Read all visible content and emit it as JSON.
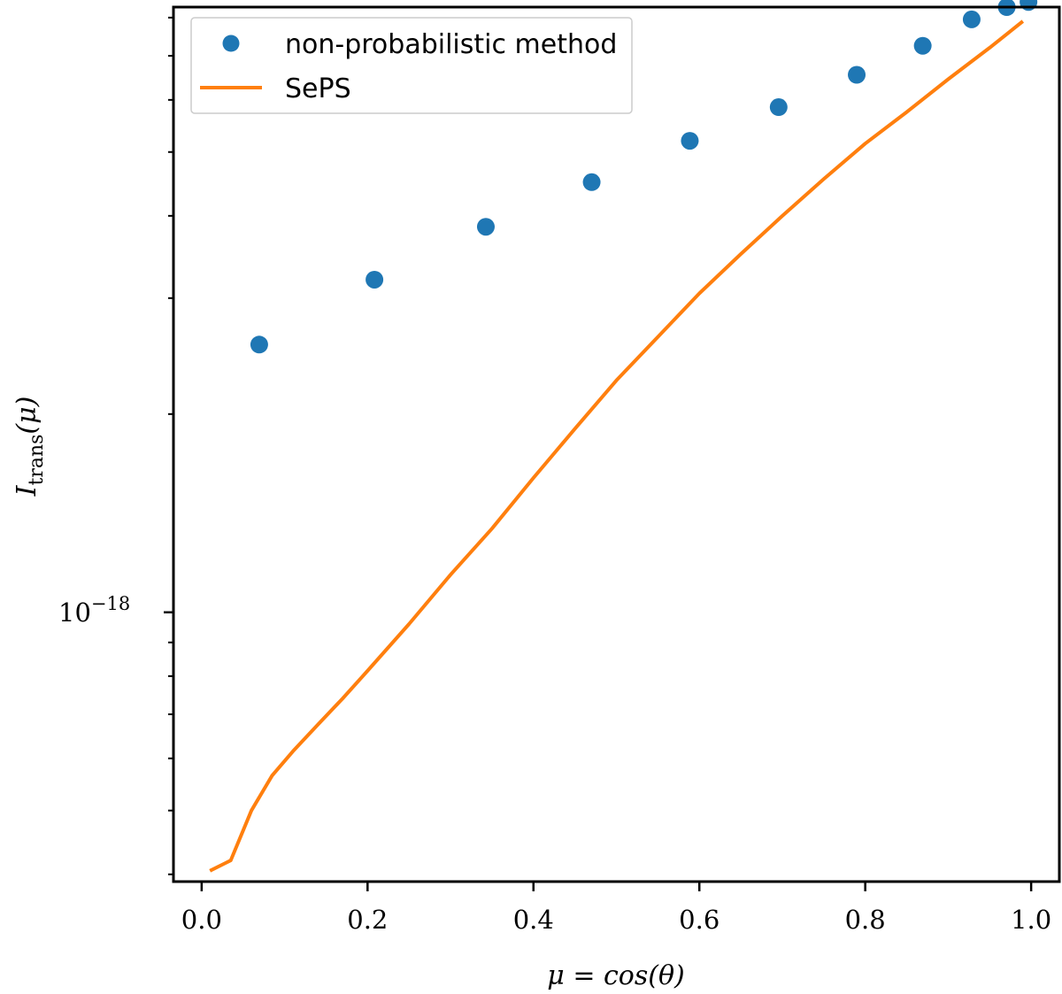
{
  "chart_data": {
    "type": "scatter+line",
    "title": "",
    "xlabel": "μ = cos(θ)",
    "ylabel_main": "I",
    "ylabel_sub": "trans",
    "ylabel_paren": "(μ)",
    "yscale": "log",
    "xlim": [
      -0.034,
      1.034
    ],
    "ylim": [
      3.9e-19,
      8.3e-18
    ],
    "x_ticks": [
      {
        "value": 0.0,
        "label": "0.0"
      },
      {
        "value": 0.2,
        "label": "0.2"
      },
      {
        "value": 0.4,
        "label": "0.4"
      },
      {
        "value": 0.6,
        "label": "0.6"
      },
      {
        "value": 0.8,
        "label": "0.8"
      },
      {
        "value": 1.0,
        "label": "1.0"
      }
    ],
    "y_major_tick": {
      "value": 1e-18,
      "base": "10",
      "exponent": "−18"
    },
    "y_minor_ticks": [
      4e-19,
      5e-19,
      6e-19,
      7e-19,
      8e-19,
      9e-19,
      2e-18,
      3e-18,
      4e-18,
      5e-18,
      6e-18,
      7e-18,
      8e-18
    ],
    "legend": {
      "position": "upper left",
      "entries": [
        {
          "label": "non-probabilistic method",
          "marker": "circle",
          "color": "#1f77b4"
        },
        {
          "label": "SePS",
          "marker": "line",
          "color": "#ff7f0e"
        }
      ]
    },
    "series": [
      {
        "name": "non-probabilistic method",
        "kind": "scatter",
        "color": "#1f77b4",
        "x": [
          0.0694,
          0.2083,
          0.3426,
          0.4702,
          0.5885,
          0.6956,
          0.7897,
          0.8693,
          0.9283,
          0.9706,
          0.9968
        ],
        "y": [
          2.55e-18,
          3.2e-18,
          3.85e-18,
          4.5e-18,
          5.2e-18,
          5.85e-18,
          6.55e-18,
          7.25e-18,
          7.95e-18,
          8.3e-18,
          8.45e-18
        ]
      },
      {
        "name": "SePS",
        "kind": "line",
        "color": "#ff7f0e",
        "x": [
          0.01,
          0.035,
          0.06,
          0.085,
          0.11,
          0.14,
          0.17,
          0.2,
          0.25,
          0.3,
          0.35,
          0.4,
          0.45,
          0.5,
          0.55,
          0.6,
          0.65,
          0.7,
          0.75,
          0.8,
          0.85,
          0.9,
          0.95,
          0.99
        ],
        "y": [
          4.05e-19,
          4.2e-19,
          5e-19,
          5.65e-19,
          6.15e-19,
          6.75e-19,
          7.4e-19,
          8.15e-19,
          9.6e-19,
          1.14e-18,
          1.34e-18,
          1.6e-18,
          1.9e-18,
          2.25e-18,
          2.62e-18,
          3.05e-18,
          3.5e-18,
          4e-18,
          4.55e-18,
          5.15e-18,
          5.75e-18,
          6.45e-18,
          7.2e-18,
          7.9e-18
        ]
      }
    ]
  }
}
